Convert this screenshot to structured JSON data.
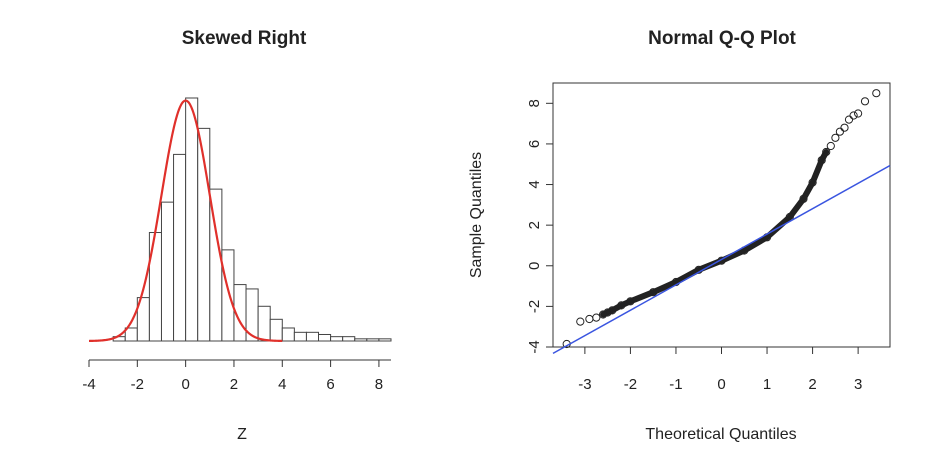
{
  "chart_data": [
    {
      "type": "histogram",
      "title": "Skewed Right",
      "xlabel": "Z",
      "ylabel": "",
      "xlim": [
        -4,
        8.5
      ],
      "x_ticks": [
        "-4",
        "-2",
        "0",
        "2",
        "4",
        "6",
        "8"
      ],
      "bin_width": 0.5,
      "bins": [
        {
          "start": -3.0,
          "density": 0.01
        },
        {
          "start": -2.5,
          "density": 0.03
        },
        {
          "start": -2.0,
          "density": 0.1
        },
        {
          "start": -1.5,
          "density": 0.25
        },
        {
          "start": -1.0,
          "density": 0.32
        },
        {
          "start": -0.5,
          "density": 0.43
        },
        {
          "start": 0.0,
          "density": 0.56
        },
        {
          "start": 0.5,
          "density": 0.49
        },
        {
          "start": 1.0,
          "density": 0.35
        },
        {
          "start": 1.5,
          "density": 0.21
        },
        {
          "start": 2.0,
          "density": 0.13
        },
        {
          "start": 2.5,
          "density": 0.12
        },
        {
          "start": 3.0,
          "density": 0.08
        },
        {
          "start": 3.5,
          "density": 0.05
        },
        {
          "start": 4.0,
          "density": 0.03
        },
        {
          "start": 4.5,
          "density": 0.02
        },
        {
          "start": 5.0,
          "density": 0.02
        },
        {
          "start": 5.5,
          "density": 0.015
        },
        {
          "start": 6.0,
          "density": 0.01
        },
        {
          "start": 6.5,
          "density": 0.01
        },
        {
          "start": 7.0,
          "density": 0.005
        },
        {
          "start": 7.5,
          "density": 0.005
        },
        {
          "start": 8.0,
          "density": 0.005
        }
      ],
      "overlay_curve": {
        "name": "normal density",
        "mean": 0,
        "sd": 1,
        "x_range": [
          -4,
          4
        ],
        "color": "#e0302b"
      }
    },
    {
      "type": "scatter",
      "title": "Normal Q-Q Plot",
      "xlabel": "Theoretical Quantiles",
      "ylabel": "Sample Quantiles",
      "xlim": [
        -3.7,
        3.7
      ],
      "ylim": [
        -4,
        9
      ],
      "x_ticks": [
        "-3",
        "-2",
        "-1",
        "0",
        "1",
        "2",
        "3"
      ],
      "y_ticks": [
        "-4",
        "-2",
        "0",
        "2",
        "4",
        "6",
        "8"
      ],
      "sample_size": 800,
      "points": [
        [
          -3.4,
          -3.85
        ],
        [
          -3.1,
          -2.75
        ],
        [
          -2.9,
          -2.62
        ],
        [
          -2.75,
          -2.55
        ],
        [
          -2.6,
          -2.4
        ],
        [
          -2.5,
          -2.3
        ],
        [
          -2.4,
          -2.2
        ],
        [
          -2.2,
          -1.95
        ],
        [
          -2.0,
          -1.75
        ],
        [
          -1.5,
          -1.3
        ],
        [
          -1.0,
          -0.8
        ],
        [
          -0.5,
          -0.2
        ],
        [
          0.0,
          0.25
        ],
        [
          0.5,
          0.75
        ],
        [
          1.0,
          1.4
        ],
        [
          1.5,
          2.4
        ],
        [
          1.8,
          3.3
        ],
        [
          2.0,
          4.1
        ],
        [
          2.2,
          5.2
        ],
        [
          2.3,
          5.6
        ],
        [
          2.4,
          5.9
        ],
        [
          2.5,
          6.3
        ],
        [
          2.6,
          6.6
        ],
        [
          2.7,
          6.8
        ],
        [
          2.8,
          7.2
        ],
        [
          2.9,
          7.4
        ],
        [
          3.0,
          7.5
        ],
        [
          3.15,
          8.1
        ],
        [
          3.4,
          8.5
        ]
      ],
      "reference_line": {
        "intercept": 0.31,
        "slope": 1.25,
        "color": "#3a55e0"
      },
      "point_color": "#222222"
    }
  ]
}
